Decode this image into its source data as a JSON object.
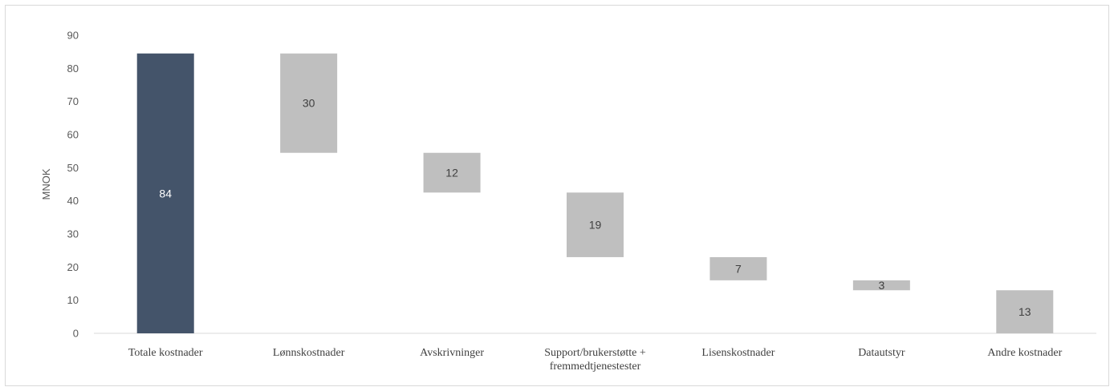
{
  "chart_data": {
    "type": "bar",
    "subtype": "waterfall",
    "ylabel": "MNOK",
    "ylim": [
      0,
      90
    ],
    "yticks": [
      0,
      10,
      20,
      30,
      40,
      50,
      60,
      70,
      80,
      90
    ],
    "grid": false,
    "categories": [
      [
        "Totale kostnader"
      ],
      [
        "Lønnskostnader"
      ],
      [
        "Avskrivninger"
      ],
      [
        "Support/brukerstøtte +",
        "fremmedtjenestester"
      ],
      [
        "Lisenskostnader"
      ],
      [
        "Datautstyr"
      ],
      [
        "Andre kostnader"
      ]
    ],
    "bars": [
      {
        "label": "84",
        "bottom": 0,
        "top": 84.5
      },
      {
        "label": "30",
        "bottom": 54.5,
        "top": 84.5
      },
      {
        "label": "12",
        "bottom": 42.5,
        "top": 54.5
      },
      {
        "label": "19",
        "bottom": 23,
        "top": 42.5
      },
      {
        "label": "7",
        "bottom": 16,
        "top": 23
      },
      {
        "label": "3",
        "bottom": 13,
        "top": 16
      },
      {
        "label": "13",
        "bottom": 0,
        "top": 13
      }
    ],
    "colors": {
      "total": "#44546a",
      "component": "#bfbfbf",
      "total_label": "#ffffff",
      "component_label": "#404040"
    }
  }
}
